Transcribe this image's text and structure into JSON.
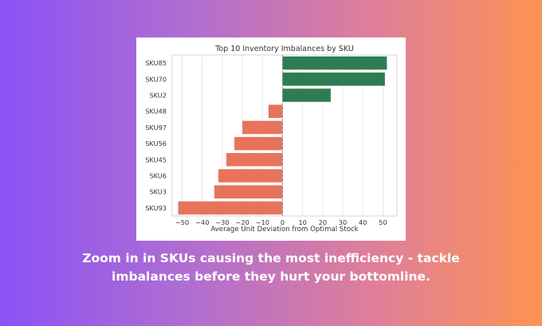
{
  "caption": {
    "line1": "Zoom in in SKUs causing the most inefficiency - tackle",
    "line2": "imbalances before they hurt your bottomline."
  },
  "colors": {
    "positive": "#2e7d52",
    "negative": "#e8735c",
    "background_left": "#8b52f6",
    "background_right": "#fd9353"
  },
  "chart_data": {
    "type": "bar",
    "orientation": "horizontal",
    "title": "Top 10 Inventory Imbalances by SKU",
    "xlabel": "Average Unit Deviation from Optimal Stock",
    "ylabel": "",
    "categories": [
      "SKU85",
      "SKU70",
      "SKU2",
      "SKU48",
      "SKU97",
      "SKU56",
      "SKU45",
      "SKU6",
      "SKU3",
      "SKU93"
    ],
    "values": [
      52,
      51,
      24,
      -7,
      -20,
      -24,
      -28,
      -32,
      -34,
      -52
    ],
    "xlim": [
      -55,
      57
    ],
    "xticks": [
      -50,
      -40,
      -30,
      -20,
      -10,
      0,
      10,
      20,
      30,
      40,
      50
    ],
    "xtick_labels": [
      "−50",
      "−40",
      "−30",
      "−20",
      "−10",
      "0",
      "10",
      "20",
      "30",
      "40",
      "50"
    ],
    "grid": "vertical",
    "zero_line": "dashed"
  }
}
